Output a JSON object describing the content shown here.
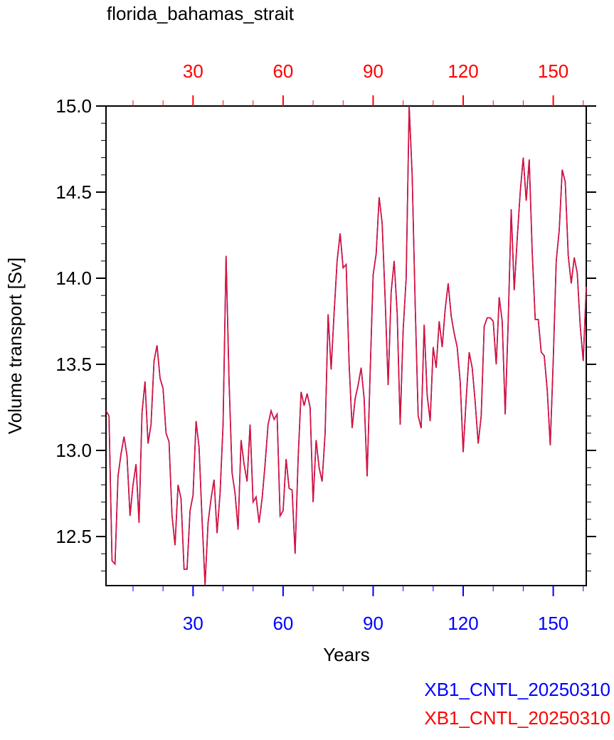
{
  "chart_data": {
    "type": "line",
    "title": "florida_bahamas_strait",
    "xlabel": "Years",
    "ylabel": "Volume transport [Sv]",
    "x": [
      1,
      2,
      3,
      4,
      5,
      6,
      7,
      8,
      9,
      10,
      11,
      12,
      13,
      14,
      15,
      16,
      17,
      18,
      19,
      20,
      21,
      22,
      23,
      24,
      25,
      26,
      27,
      28,
      29,
      30,
      31,
      32,
      33,
      34,
      35,
      36,
      37,
      38,
      39,
      40,
      41,
      42,
      43,
      44,
      45,
      46,
      47,
      48,
      49,
      50,
      51,
      52,
      53,
      54,
      55,
      56,
      57,
      58,
      59,
      60,
      61,
      62,
      63,
      64,
      65,
      66,
      67,
      68,
      69,
      70,
      71,
      72,
      73,
      74,
      75,
      76,
      77,
      78,
      79,
      80,
      81,
      82,
      83,
      84,
      85,
      86,
      87,
      88,
      89,
      90,
      91,
      92,
      93,
      94,
      95,
      96,
      97,
      98,
      99,
      100,
      101,
      102,
      103,
      104,
      105,
      106,
      107,
      108,
      109,
      110,
      111,
      112,
      113,
      114,
      115,
      116,
      117,
      118,
      119,
      120,
      121,
      122,
      123,
      124,
      125,
      126,
      127,
      128,
      129,
      130,
      131,
      132,
      133,
      134,
      135,
      136,
      137,
      138,
      139,
      140,
      141,
      142,
      143,
      144,
      145,
      146,
      147,
      148,
      149,
      150,
      151,
      152,
      153,
      154,
      155,
      156,
      157,
      158,
      159,
      160,
      161
    ],
    "series": [
      {
        "name": "XB1_CNTL_20250310",
        "color": "#0000ff",
        "axis": "x",
        "values": [
          13.23,
          13.2,
          12.36,
          12.34,
          12.85,
          12.98,
          13.08,
          12.97,
          12.62,
          12.8,
          12.92,
          12.58,
          13.22,
          13.4,
          13.04,
          13.15,
          13.52,
          13.61,
          13.42,
          13.36,
          13.1,
          13.05,
          12.62,
          12.45,
          12.8,
          12.72,
          12.31,
          12.31,
          12.65,
          12.74,
          13.17,
          13.02,
          12.6,
          12.22,
          12.58,
          12.72,
          12.83,
          12.52,
          12.75,
          13.15,
          14.13,
          13.4,
          12.87,
          12.75,
          12.54,
          13.06,
          12.92,
          12.82,
          13.15,
          12.7,
          12.73,
          12.58,
          12.72,
          12.92,
          13.15,
          13.23,
          13.18,
          13.21,
          12.62,
          12.65,
          12.95,
          12.78,
          12.77,
          12.4,
          12.95,
          13.34,
          13.26,
          13.33,
          13.25,
          12.7,
          13.06,
          12.9,
          12.82,
          13.1,
          13.79,
          13.47,
          13.8,
          14.1,
          14.26,
          14.06,
          14.08,
          13.5,
          13.13,
          13.3,
          13.38,
          13.48,
          13.3,
          12.85,
          13.45,
          14.02,
          14.14,
          14.47,
          14.32,
          13.88,
          13.38,
          13.92,
          14.1,
          13.8,
          13.15,
          13.7,
          14.0,
          15.0,
          14.6,
          13.85,
          13.2,
          13.13,
          13.73,
          13.32,
          13.17,
          13.6,
          13.48,
          13.75,
          13.6,
          13.82,
          13.97,
          13.78,
          13.68,
          13.6,
          13.4,
          12.99,
          13.3,
          13.57,
          13.48,
          13.28,
          13.04,
          13.2,
          13.72,
          13.77,
          13.77,
          13.75,
          13.5,
          13.89,
          13.75,
          13.21,
          13.75,
          14.4,
          13.93,
          14.23,
          14.5,
          14.7,
          14.45,
          14.69,
          14.15,
          13.76,
          13.76,
          13.57,
          13.55,
          13.35,
          13.03,
          13.52,
          14.1,
          14.28,
          14.63,
          14.56,
          14.13,
          13.97,
          14.12,
          14.03,
          13.72,
          13.52,
          13.95
        ]
      },
      {
        "name": "XB1_CNTL_20250310",
        "color": "#ff0000",
        "line_color": "#dd1133",
        "axis": "x2",
        "values": [
          13.23,
          13.2,
          12.36,
          12.34,
          12.85,
          12.98,
          13.08,
          12.97,
          12.62,
          12.8,
          12.92,
          12.58,
          13.22,
          13.4,
          13.04,
          13.15,
          13.52,
          13.61,
          13.42,
          13.36,
          13.1,
          13.05,
          12.62,
          12.45,
          12.8,
          12.72,
          12.31,
          12.31,
          12.65,
          12.74,
          13.17,
          13.02,
          12.6,
          12.22,
          12.58,
          12.72,
          12.83,
          12.52,
          12.75,
          13.15,
          14.13,
          13.4,
          12.87,
          12.75,
          12.54,
          13.06,
          12.92,
          12.82,
          13.15,
          12.7,
          12.73,
          12.58,
          12.72,
          12.92,
          13.15,
          13.23,
          13.18,
          13.21,
          12.62,
          12.65,
          12.95,
          12.78,
          12.77,
          12.4,
          12.95,
          13.34,
          13.26,
          13.33,
          13.25,
          12.7,
          13.06,
          12.9,
          12.82,
          13.1,
          13.79,
          13.47,
          13.8,
          14.1,
          14.26,
          14.06,
          14.08,
          13.5,
          13.13,
          13.3,
          13.38,
          13.48,
          13.3,
          12.85,
          13.45,
          14.02,
          14.14,
          14.47,
          14.32,
          13.88,
          13.38,
          13.92,
          14.1,
          13.8,
          13.15,
          13.7,
          14.0,
          15.0,
          14.6,
          13.85,
          13.2,
          13.13,
          13.73,
          13.32,
          13.17,
          13.6,
          13.48,
          13.75,
          13.6,
          13.82,
          13.97,
          13.78,
          13.68,
          13.6,
          13.4,
          12.99,
          13.3,
          13.57,
          13.48,
          13.28,
          13.04,
          13.2,
          13.72,
          13.77,
          13.77,
          13.75,
          13.5,
          13.89,
          13.75,
          13.21,
          13.75,
          14.4,
          13.93,
          14.23,
          14.5,
          14.7,
          14.45,
          14.69,
          14.15,
          13.76,
          13.76,
          13.57,
          13.55,
          13.35,
          13.03,
          13.52,
          14.1,
          14.28,
          14.63,
          14.56,
          14.13,
          13.97,
          14.12,
          14.03,
          13.72,
          13.52,
          13.95
        ]
      }
    ],
    "xlim": [
      1,
      161
    ],
    "xticks": [
      30,
      60,
      90,
      120,
      150
    ],
    "xminorticks": [
      10,
      20,
      40,
      50,
      70,
      80,
      100,
      110,
      130,
      140,
      160
    ],
    "x2lim": [
      1,
      161
    ],
    "x2ticks": [
      30,
      60,
      90,
      120,
      150
    ],
    "ylim": [
      12.215,
      15.0
    ],
    "yticks": [
      {
        "value": 12.5,
        "label": "12.5"
      },
      {
        "value": 13,
        "label": "13.0"
      },
      {
        "value": 13.5,
        "label": "13.5"
      },
      {
        "value": 14,
        "label": "14.0"
      },
      {
        "value": 14.5,
        "label": "14.5"
      },
      {
        "value": 15,
        "label": "15.0"
      }
    ],
    "yminorticks": [
      12.3,
      12.4,
      12.6,
      12.7,
      12.8,
      12.9,
      13.1,
      13.2,
      13.3,
      13.4,
      13.6,
      13.7,
      13.8,
      13.9,
      14.1,
      14.2,
      14.3,
      14.4,
      14.6,
      14.7,
      14.8,
      14.9
    ],
    "grid": false
  }
}
